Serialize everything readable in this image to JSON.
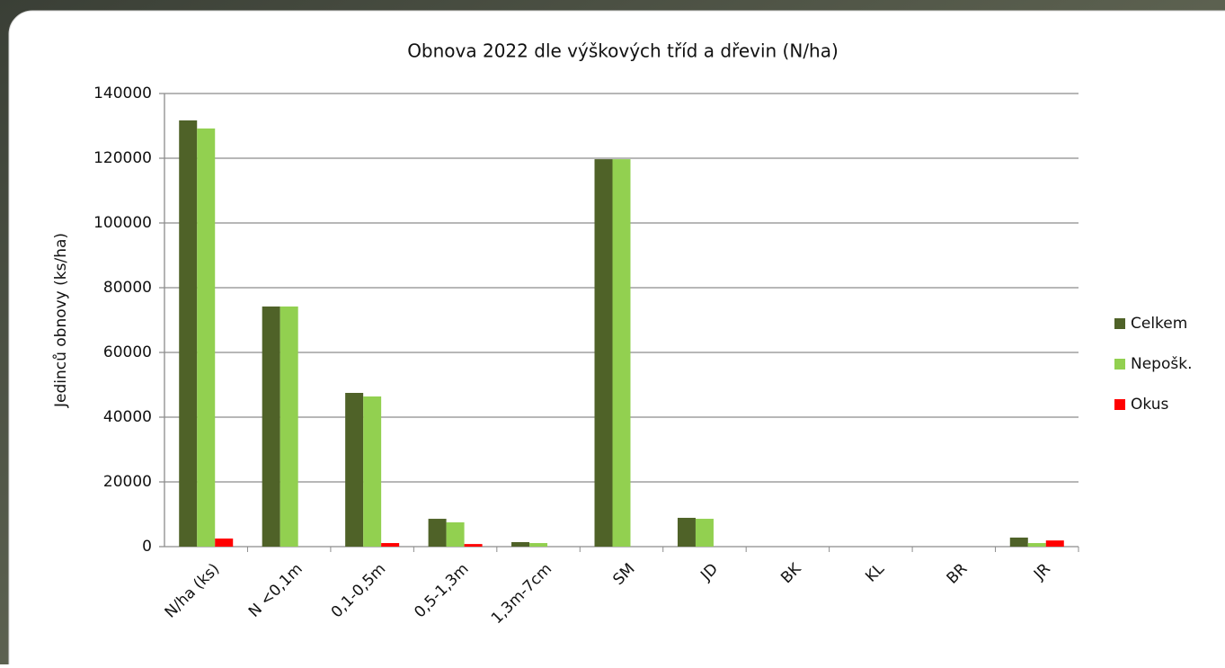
{
  "chart_data": {
    "type": "bar",
    "title": "Obnova 2022 dle výškových tříd a dřevin  (N/ha)",
    "y_label": "Jedinců obnovy  (ks/ha)",
    "categories": [
      "N/ha (ks)",
      "N <0,1m",
      "0,1-0,5m",
      "0,5-1,3m",
      "1,3m-7cm",
      "SM",
      "JD",
      "BK",
      "KL",
      "BR",
      "JR"
    ],
    "series": [
      {
        "name": "Celkem",
        "color": "#4f6228",
        "values": [
          131700,
          74200,
          47500,
          8600,
          1400,
          119700,
          8900,
          0,
          0,
          0,
          2800
        ]
      },
      {
        "name": "Nepošk.",
        "color": "#92d050",
        "values": [
          129200,
          74200,
          46400,
          7500,
          1100,
          119700,
          8600,
          0,
          0,
          0,
          1100
        ]
      },
      {
        "name": "Okus",
        "color": "#ff0000",
        "values": [
          2500,
          0,
          1100,
          800,
          0,
          0,
          0,
          0,
          0,
          0,
          1900
        ]
      }
    ],
    "ylim": [
      0,
      140000
    ],
    "yticks": [
      0,
      20000,
      40000,
      60000,
      80000,
      100000,
      120000,
      140000
    ],
    "grid": true,
    "legend": "right"
  }
}
